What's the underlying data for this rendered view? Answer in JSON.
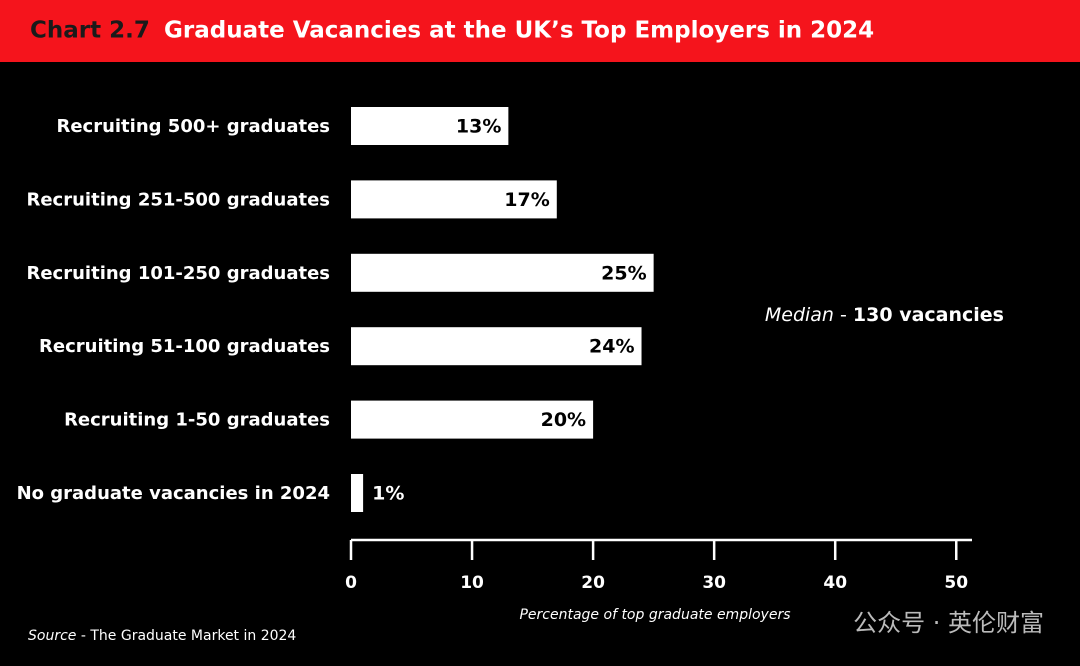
{
  "chart_data": {
    "type": "bar",
    "orientation": "horizontal",
    "title_prefix": "Chart 2.7",
    "title": "Graduate Vacancies at the UK’s Top Employers in 2024",
    "categories": [
      "Recruiting 500+ graduates",
      "Recruiting 251-500 graduates",
      "Recruiting 101-250 graduates",
      "Recruiting 51-100 graduates",
      "Recruiting 1-50 graduates",
      "No graduate vacancies in 2024"
    ],
    "values": [
      13,
      17,
      25,
      24,
      20,
      1
    ],
    "value_labels": [
      "13%",
      "17%",
      "25%",
      "24%",
      "20%",
      "1%"
    ],
    "color": "#ffffff",
    "xlim": [
      0,
      51.3
    ],
    "xticks": [
      0,
      10,
      20,
      30,
      40,
      50
    ],
    "xlabel": "Percentage of top graduate employers",
    "annotation": {
      "label": "Median",
      "separator": "-",
      "text": "130 vacancies"
    },
    "source": {
      "label": "Source",
      "text": "- The Graduate Market in 2024"
    },
    "watermark": "公众号 · 英伦财富"
  }
}
